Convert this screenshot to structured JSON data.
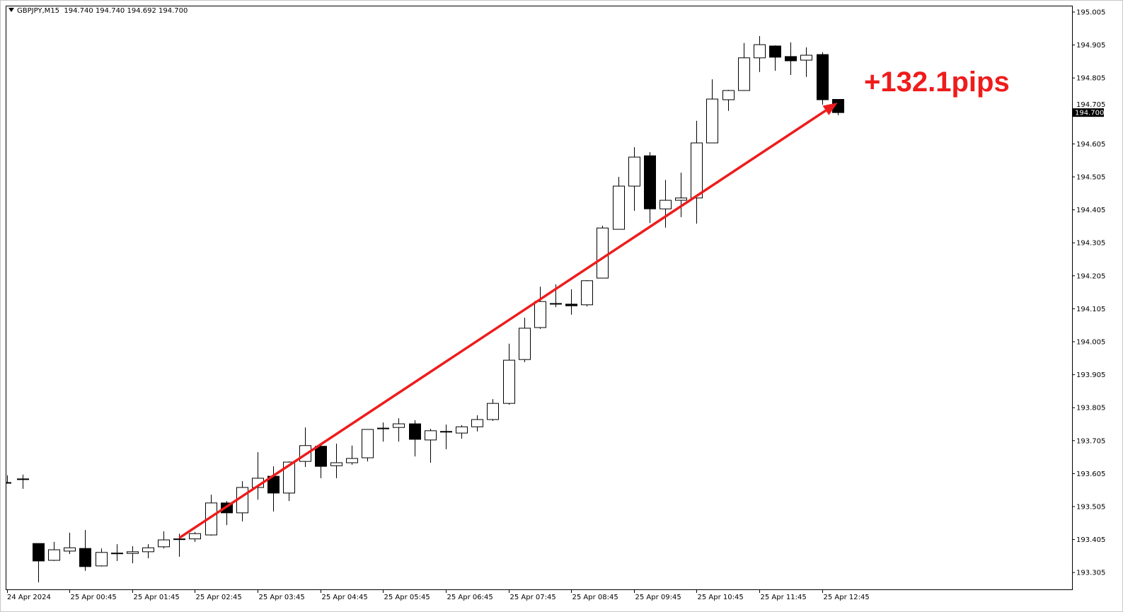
{
  "header": {
    "symbol": "GBPJPY,M15",
    "ohlc": "194.740 194.740 194.692 194.700"
  },
  "annotation": {
    "text": "+132.1pips",
    "color": "#ee1c1c"
  },
  "chart_data": {
    "type": "candlestick",
    "symbol": "GBPJPY",
    "timeframe": "M15",
    "ylim": [
      193.26,
      195.025
    ],
    "grid": false,
    "current_price": "194.700",
    "y_ticks": [
      "195.005",
      "194.905",
      "194.805",
      "194.705",
      "194.605",
      "194.505",
      "194.405",
      "194.305",
      "194.205",
      "194.105",
      "194.005",
      "193.905",
      "193.805",
      "193.705",
      "193.605",
      "193.505",
      "193.405",
      "193.305"
    ],
    "x_tick_labels": [
      {
        "candle": 0,
        "label": "24 Apr 2024"
      },
      {
        "candle": 4,
        "label": "25 Apr 00:45"
      },
      {
        "candle": 8,
        "label": "25 Apr 01:45"
      },
      {
        "candle": 12,
        "label": "25 Apr 02:45"
      },
      {
        "candle": 16,
        "label": "25 Apr 03:45"
      },
      {
        "candle": 20,
        "label": "25 Apr 04:45"
      },
      {
        "candle": 24,
        "label": "25 Apr 05:45"
      },
      {
        "candle": 28,
        "label": "25 Apr 06:45"
      },
      {
        "candle": 32,
        "label": "25 Apr 07:45"
      },
      {
        "candle": 36,
        "label": "25 Apr 08:45"
      },
      {
        "candle": 40,
        "label": "25 Apr 09:45"
      },
      {
        "candle": 44,
        "label": "25 Apr 10:45"
      },
      {
        "candle": 48,
        "label": "25 Apr 11:45"
      },
      {
        "candle": 52,
        "label": "25 Apr 12:45"
      }
    ],
    "candles": [
      [
        193.578,
        193.6,
        193.575,
        193.578
      ],
      [
        193.589,
        193.602,
        193.559,
        193.587
      ],
      [
        193.393,
        193.393,
        193.275,
        193.34
      ],
      [
        193.342,
        193.398,
        193.34,
        193.374
      ],
      [
        193.37,
        193.426,
        193.361,
        193.38
      ],
      [
        193.378,
        193.434,
        193.31,
        193.323
      ],
      [
        193.325,
        193.378,
        193.323,
        193.366
      ],
      [
        193.363,
        193.391,
        193.34,
        193.364
      ],
      [
        193.363,
        193.385,
        193.333,
        193.368
      ],
      [
        193.368,
        193.391,
        193.348,
        193.38
      ],
      [
        193.383,
        193.43,
        193.378,
        193.404
      ],
      [
        193.406,
        193.423,
        193.353,
        193.407
      ],
      [
        193.407,
        193.428,
        193.398,
        193.423
      ],
      [
        193.419,
        193.541,
        193.417,
        193.516
      ],
      [
        193.516,
        193.522,
        193.449,
        193.486
      ],
      [
        193.486,
        193.582,
        193.46,
        193.563
      ],
      [
        193.563,
        193.67,
        193.526,
        193.591
      ],
      [
        193.597,
        193.627,
        193.49,
        193.546
      ],
      [
        193.546,
        193.642,
        193.522,
        193.64
      ],
      [
        193.642,
        193.745,
        193.625,
        193.69
      ],
      [
        193.688,
        193.696,
        193.591,
        193.627
      ],
      [
        193.629,
        193.696,
        193.591,
        193.638
      ],
      [
        193.638,
        193.69,
        193.632,
        193.651
      ],
      [
        193.653,
        193.739,
        193.642,
        193.739
      ],
      [
        193.741,
        193.76,
        193.702,
        193.743
      ],
      [
        193.745,
        193.773,
        193.702,
        193.756
      ],
      [
        193.756,
        193.767,
        193.657,
        193.709
      ],
      [
        193.707,
        193.741,
        193.638,
        193.735
      ],
      [
        193.733,
        193.754,
        193.679,
        193.732
      ],
      [
        193.728,
        193.752,
        193.711,
        193.747
      ],
      [
        193.747,
        193.782,
        193.733,
        193.769
      ],
      [
        193.769,
        193.831,
        193.765,
        193.818
      ],
      [
        193.818,
        193.999,
        193.814,
        193.949
      ],
      [
        193.951,
        194.078,
        193.943,
        194.046
      ],
      [
        194.048,
        194.172,
        194.044,
        194.127
      ],
      [
        194.121,
        194.179,
        194.11,
        194.12
      ],
      [
        194.119,
        194.164,
        194.087,
        194.114
      ],
      [
        194.117,
        194.192,
        194.112,
        194.19
      ],
      [
        194.198,
        194.357,
        194.198,
        194.35
      ],
      [
        194.346,
        194.505,
        194.346,
        194.477
      ],
      [
        194.477,
        194.595,
        194.402,
        194.565
      ],
      [
        194.569,
        194.58,
        194.365,
        194.408
      ],
      [
        194.408,
        194.496,
        194.351,
        194.434
      ],
      [
        194.434,
        194.518,
        194.383,
        194.441
      ],
      [
        194.441,
        194.675,
        194.363,
        194.608
      ],
      [
        194.608,
        194.801,
        194.608,
        194.741
      ],
      [
        194.739,
        194.769,
        194.705,
        194.767
      ],
      [
        194.767,
        194.911,
        194.767,
        194.866
      ],
      [
        194.866,
        194.932,
        194.823,
        194.906
      ],
      [
        194.902,
        194.904,
        194.827,
        194.868
      ],
      [
        194.87,
        194.913,
        194.814,
        194.857
      ],
      [
        194.859,
        194.898,
        194.808,
        194.874
      ],
      [
        194.876,
        194.883,
        194.724,
        194.739
      ],
      [
        194.74,
        194.74,
        194.692,
        194.7
      ]
    ],
    "candle_fields": [
      "open",
      "high",
      "low",
      "close"
    ],
    "trend_arrow": {
      "from": {
        "candle": 11,
        "price": 193.41
      },
      "to": {
        "candle": 53,
        "price": 194.73
      },
      "color": "#ee1c1c"
    }
  }
}
